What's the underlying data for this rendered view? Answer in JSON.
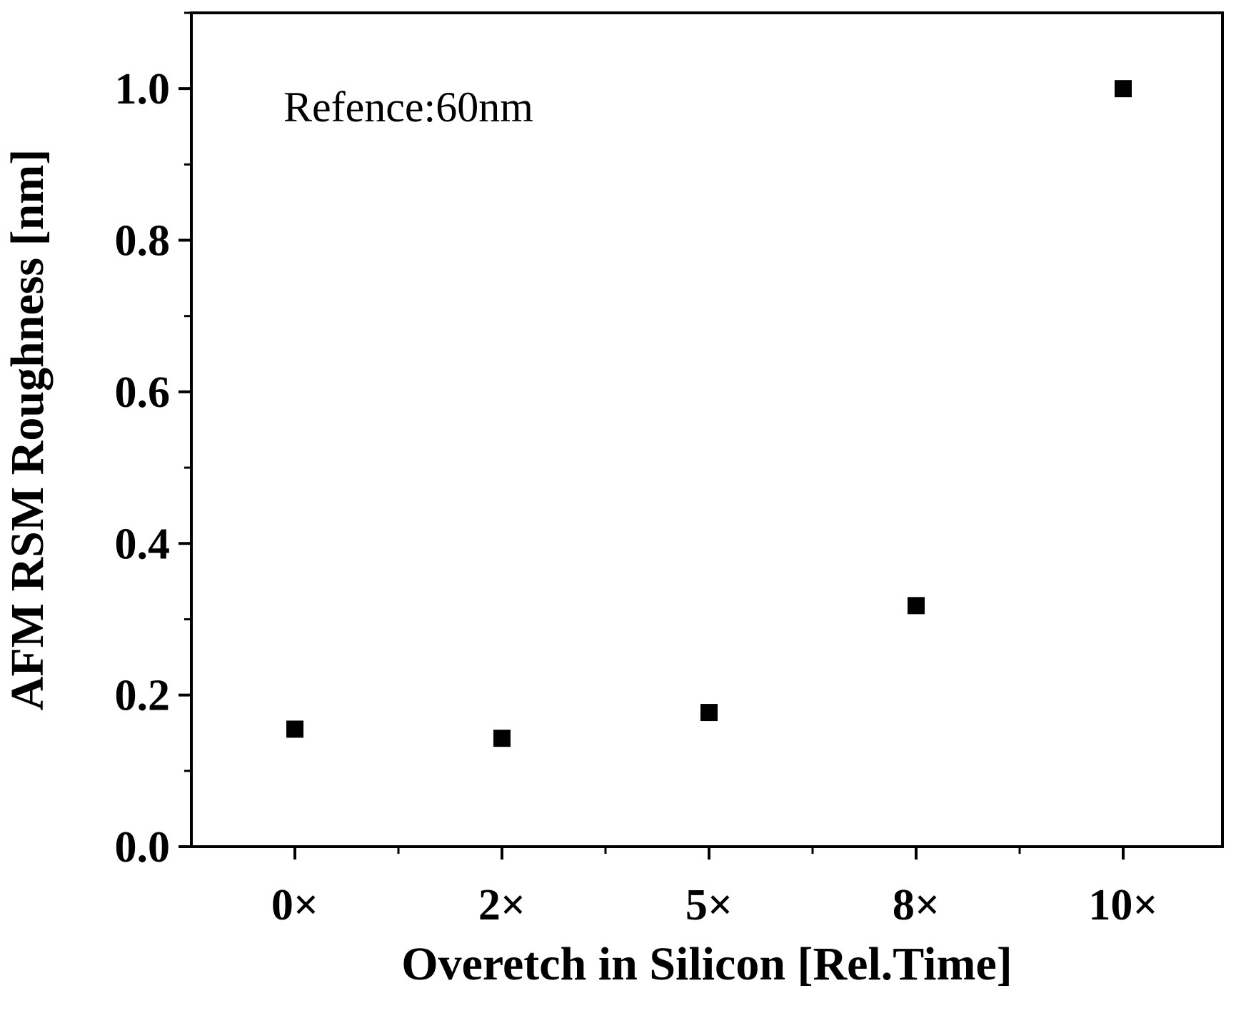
{
  "chart_data": {
    "type": "scatter",
    "categories": [
      "0×",
      "2×",
      "5×",
      "8×",
      "10×"
    ],
    "series": [
      {
        "values": [
          0.155,
          0.143,
          0.177,
          0.318,
          1.0
        ]
      }
    ],
    "xlabel": "Overetch in Silicon [Rel.Time]",
    "ylabel": "AFM RSM Roughness [nm]",
    "ylim": [
      0,
      1.1
    ],
    "yticks": [
      "0.0",
      "0.2",
      "0.4",
      "0.6",
      "0.8",
      "1.0"
    ],
    "annotation": "Refence:60nm",
    "marker": "square",
    "marker_color": "#000000",
    "grid": false,
    "legend": false
  }
}
